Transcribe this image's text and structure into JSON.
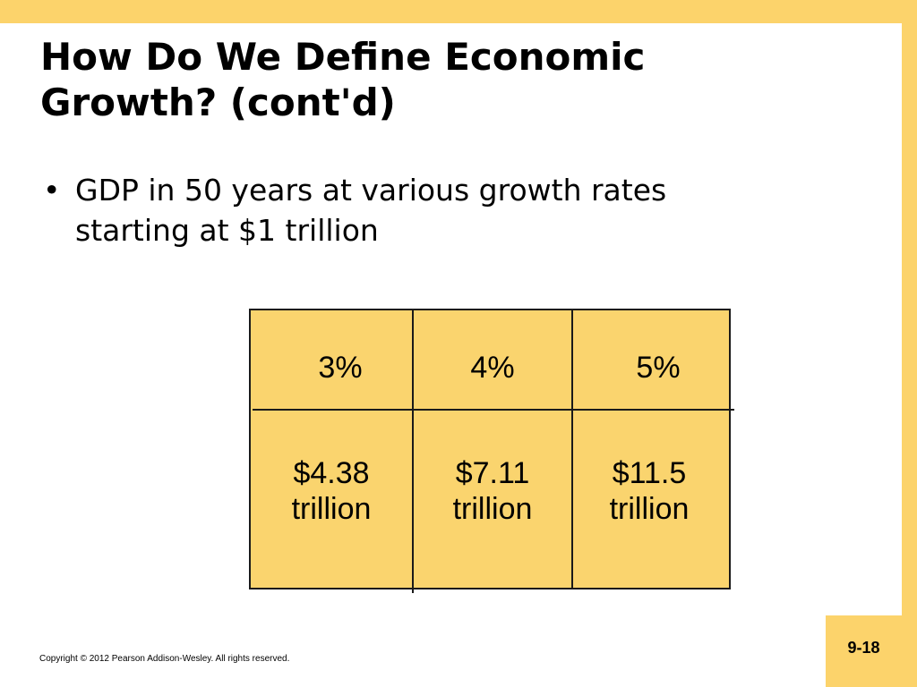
{
  "slide": {
    "title_line1": "How Do We Define Economic",
    "title_line2": "Growth? (cont'd)",
    "bullet_symbol": "•",
    "bullet_line1": "GDP in 50 years at various growth rates",
    "bullet_line2": "starting at $1 trillion",
    "page_number": "9-18",
    "copyright": "Copyright © 2012 Pearson Addison-Wesley. All rights reserved."
  },
  "table": {
    "rates": [
      "3%",
      "4%",
      "5%"
    ],
    "values": [
      {
        "amount": "$4.38",
        "unit": "trillion"
      },
      {
        "amount": "$7.11",
        "unit": "trillion"
      },
      {
        "amount": "$11.5",
        "unit": "trillion"
      }
    ]
  },
  "colors": {
    "accent": "#fcd36b",
    "table_fill": "#fad46e"
  }
}
